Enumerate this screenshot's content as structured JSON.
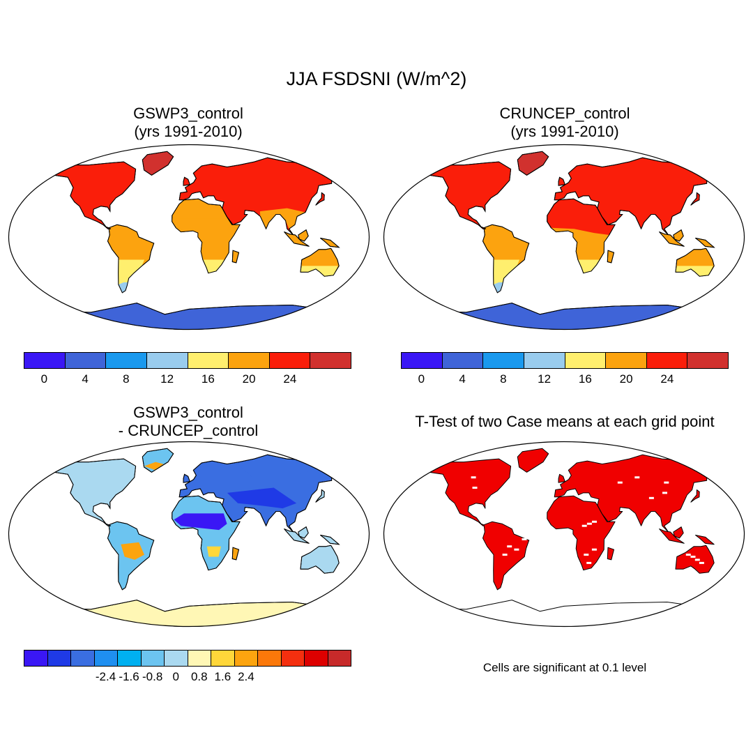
{
  "title": "JJA FSDSNI (W/m^2)",
  "panels": [
    {
      "id": "gswp3",
      "title_line1": "GSWP3_control",
      "title_line2": "(yrs 1991-2010)"
    },
    {
      "id": "cruncep",
      "title_line1": "CRUNCEP_control",
      "title_line2": "(yrs 1991-2010)"
    },
    {
      "id": "diff",
      "title_line1": "GSWP3_control",
      "title_line2": "- CRUNCEP_control"
    },
    {
      "id": "ttest",
      "title_line1": "T-Test of two Case means at each grid point",
      "title_line2": ""
    }
  ],
  "colorbar_abs": {
    "colors": [
      "#3a17f5",
      "#3f64d8",
      "#1a99ee",
      "#99ccee",
      "#ffef6e",
      "#fca30f",
      "#fa1e0a",
      "#d1312e"
    ],
    "ticks": [
      "0",
      "4",
      "8",
      "12",
      "16",
      "20",
      "24"
    ]
  },
  "colorbar_diff": {
    "colors": [
      "#3a17f5",
      "#1f3ae6",
      "#3a6ee1",
      "#1f8ff0",
      "#00b0f0",
      "#6cc4f0",
      "#aad9f0",
      "#fff7b5",
      "#ffd73a",
      "#fca40f",
      "#fb780a",
      "#f42f0f",
      "#dd0000",
      "#c72a2a"
    ],
    "ticks": [
      "-2.4",
      "-1.6",
      "-0.8",
      "0",
      "0.8",
      "1.6",
      "2.4"
    ]
  },
  "significance_note": "Cells are significant at 0.1 level",
  "significance_color": "#f00000"
}
